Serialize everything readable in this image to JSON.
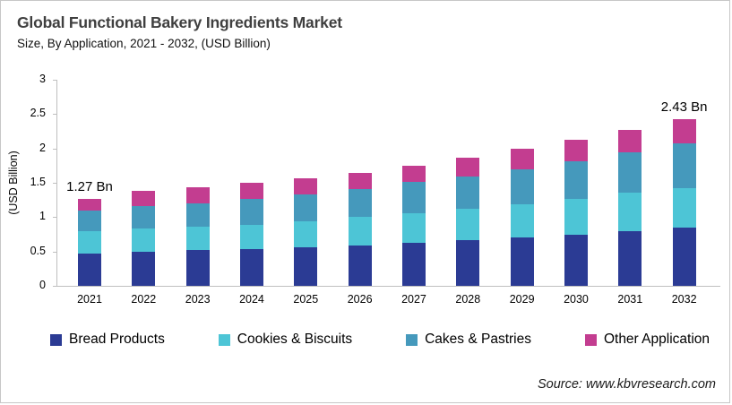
{
  "header": {
    "title": "Global Functional Bakery Ingredients Market",
    "subtitle": "Size, By Application, 2021 - 2032, (USD Billion)"
  },
  "footer": {
    "source": "Source: www.kbvresearch.com"
  },
  "chart_data": {
    "type": "bar",
    "stacked": true,
    "title": "Global Functional Bakery Ingredients Market",
    "subtitle": "Size, By Application, 2021 - 2032, (USD Billion)",
    "ylabel": "(USD Billion)",
    "xlabel": "",
    "ylim": [
      0,
      3
    ],
    "y_ticks": [
      0,
      0.5,
      1,
      1.5,
      2,
      2.5,
      3
    ],
    "grid": false,
    "legend_position": "bottom",
    "categories": [
      "2021",
      "2022",
      "2023",
      "2024",
      "2025",
      "2026",
      "2027",
      "2028",
      "2029",
      "2030",
      "2031",
      "2032"
    ],
    "series": [
      {
        "name": "Bread Products",
        "color": "#2B3B94",
        "values": [
          0.47,
          0.5,
          0.52,
          0.54,
          0.56,
          0.59,
          0.62,
          0.66,
          0.7,
          0.74,
          0.79,
          0.85
        ]
      },
      {
        "name": "Cookies & Biscuits",
        "color": "#4DC5D6",
        "values": [
          0.32,
          0.33,
          0.34,
          0.35,
          0.38,
          0.41,
          0.43,
          0.46,
          0.49,
          0.52,
          0.57,
          0.57
        ]
      },
      {
        "name": "Cakes & Pastries",
        "color": "#4599BC",
        "values": [
          0.31,
          0.33,
          0.34,
          0.37,
          0.39,
          0.41,
          0.46,
          0.47,
          0.51,
          0.55,
          0.58,
          0.66
        ]
      },
      {
        "name": "Other Application",
        "color": "#C33D90",
        "values": [
          0.17,
          0.22,
          0.23,
          0.24,
          0.24,
          0.24,
          0.24,
          0.27,
          0.29,
          0.31,
          0.33,
          0.35
        ]
      }
    ],
    "totals": [
      1.27,
      1.38,
      1.43,
      1.5,
      1.57,
      1.65,
      1.75,
      1.86,
      1.99,
      2.12,
      2.27,
      2.43
    ],
    "annotations": [
      {
        "category": "2021",
        "text": "1.27 Bn"
      },
      {
        "category": "2032",
        "text": "2.43 Bn"
      }
    ]
  }
}
